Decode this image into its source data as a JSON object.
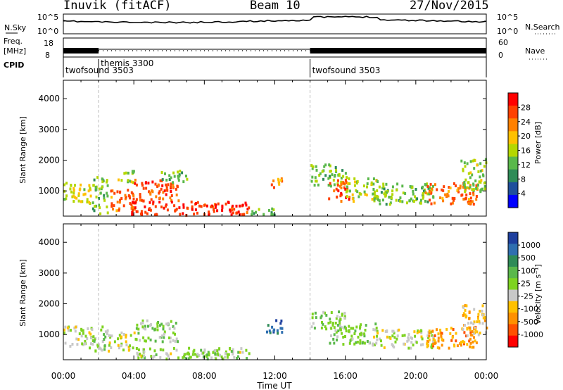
{
  "header": {
    "station": "Inuvik (fitACF)",
    "beam": "Beam 10",
    "date": "27/Nov/2015"
  },
  "strip_panels": {
    "nsky_label": "N.Sky",
    "nsky_ticks": [
      "10^5",
      "10^0"
    ],
    "nsearch_label": "N.Search",
    "nsearch_ticks": [
      "10^5",
      "10^0"
    ],
    "freq_label": "Freq.",
    "freq_unit": "[MHz]",
    "freq_ticks": [
      "18",
      "8"
    ],
    "nave_label": "Nave",
    "nave_ticks": [
      "60",
      "0"
    ],
    "cpid_label": "CPID",
    "cpid_modes": [
      {
        "name": "twofsound 3503",
        "start_hour": 0,
        "end_hour": 2
      },
      {
        "name": "themis 3300",
        "start_hour": 2,
        "end_hour": 14
      },
      {
        "name": "twofsound 3503",
        "start_hour": 14,
        "end_hour": 24
      }
    ]
  },
  "power_panel": {
    "ylabel": "Slant Range [km]",
    "yticks": [
      "4000",
      "3000",
      "2000",
      "1000"
    ],
    "colorbar_label": "Power [dB]",
    "colorbar_ticks": [
      "28",
      "24",
      "20",
      "16",
      "12",
      "8",
      "4"
    ],
    "colorbar_colors": [
      "#ff0000",
      "#ff4000",
      "#ff8000",
      "#ffc000",
      "#b4d700",
      "#5ab84b",
      "#2e8b57",
      "#1f4f9c",
      "#0000ff"
    ]
  },
  "velocity_panel": {
    "ylabel": "Slant Range [km]",
    "yticks": [
      "4000",
      "3000",
      "2000",
      "1000"
    ],
    "colorbar_label": "Velocity [m s⁻¹]",
    "colorbar_ticks": [
      "1000",
      "500",
      "100",
      "25",
      "-25",
      "-100",
      "-500",
      "-1000"
    ],
    "colorbar_colors": [
      "#1e3f9e",
      "#2f6fb0",
      "#2e8b57",
      "#5ab84b",
      "#7ed321",
      "#c8c8c8",
      "#ffc000",
      "#ff9000",
      "#ff5000",
      "#ff0000"
    ]
  },
  "time_axis": {
    "xlabel": "Time UT",
    "ticks": [
      "00:00",
      "04:00",
      "08:00",
      "12:00",
      "16:00",
      "20:00",
      "00:00"
    ]
  },
  "chart_data": [
    {
      "type": "heatmap",
      "name": "power",
      "x_range_hours": [
        0,
        24
      ],
      "y_range_km": [
        180,
        4600
      ],
      "value_range_db": [
        0,
        30
      ],
      "regions": [
        {
          "t": [
            0.0,
            1.6
          ],
          "r": [
            600,
            1300
          ],
          "v": 16
        },
        {
          "t": [
            1.6,
            2.5
          ],
          "r": [
            300,
            1500
          ],
          "v": 12
        },
        {
          "t": [
            2.5,
            4.0
          ],
          "r": [
            400,
            1100
          ],
          "v": 24
        },
        {
          "t": [
            3.0,
            4.0
          ],
          "r": [
            1300,
            1700
          ],
          "v": 14
        },
        {
          "t": [
            4.0,
            6.5
          ],
          "r": [
            700,
            1400
          ],
          "v": 26
        },
        {
          "t": [
            5.5,
            7.0
          ],
          "r": [
            1300,
            1700
          ],
          "v": 12
        },
        {
          "t": [
            3.8,
            10.5
          ],
          "r": [
            250,
            700
          ],
          "v": 28
        },
        {
          "t": [
            10.5,
            12.0
          ],
          "r": [
            250,
            500
          ],
          "v": 12
        },
        {
          "t": [
            11.6,
            12.4
          ],
          "r": [
            1100,
            1500
          ],
          "v": 22
        },
        {
          "t": [
            14.0,
            16.0
          ],
          "r": [
            1200,
            1900
          ],
          "v": 12
        },
        {
          "t": [
            15.0,
            16.2
          ],
          "r": [
            700,
            1400
          ],
          "v": 26
        },
        {
          "t": [
            16.0,
            17.8
          ],
          "r": [
            700,
            1500
          ],
          "v": 14
        },
        {
          "t": [
            17.5,
            21.0
          ],
          "r": [
            600,
            1300
          ],
          "v": 12
        },
        {
          "t": [
            20.5,
            23.5
          ],
          "r": [
            600,
            1300
          ],
          "v": 24
        },
        {
          "t": [
            22.5,
            24.0
          ],
          "r": [
            1000,
            2100
          ],
          "v": 14
        }
      ]
    },
    {
      "type": "heatmap",
      "name": "velocity",
      "x_range_hours": [
        0,
        24
      ],
      "y_range_km": [
        180,
        4600
      ],
      "value_range_ms": [
        -1000,
        1000
      ],
      "regions": [
        {
          "t": [
            0.0,
            1.6
          ],
          "r": [
            600,
            1300
          ],
          "v": -100
        },
        {
          "t": [
            1.6,
            2.5
          ],
          "r": [
            400,
            1300
          ],
          "v": 100
        },
        {
          "t": [
            2.5,
            4.0
          ],
          "r": [
            500,
            1100
          ],
          "v": -100
        },
        {
          "t": [
            4.0,
            6.5
          ],
          "r": [
            800,
            1500
          ],
          "v": 100
        },
        {
          "t": [
            4.0,
            10.5
          ],
          "r": [
            250,
            600
          ],
          "v": 0
        },
        {
          "t": [
            6.5,
            10.0
          ],
          "r": [
            250,
            500
          ],
          "v": 150
        },
        {
          "t": [
            11.5,
            12.4
          ],
          "r": [
            1000,
            1500
          ],
          "v": 800
        },
        {
          "t": [
            14.0,
            16.0
          ],
          "r": [
            1200,
            1800
          ],
          "v": 100
        },
        {
          "t": [
            15.0,
            17.8
          ],
          "r": [
            700,
            1400
          ],
          "v": 100
        },
        {
          "t": [
            17.5,
            21.0
          ],
          "r": [
            600,
            1200
          ],
          "v": -100
        },
        {
          "t": [
            20.5,
            23.5
          ],
          "r": [
            600,
            1300
          ],
          "v": -500
        },
        {
          "t": [
            22.5,
            24.0
          ],
          "r": [
            1000,
            2000
          ],
          "v": -300
        }
      ]
    }
  ]
}
